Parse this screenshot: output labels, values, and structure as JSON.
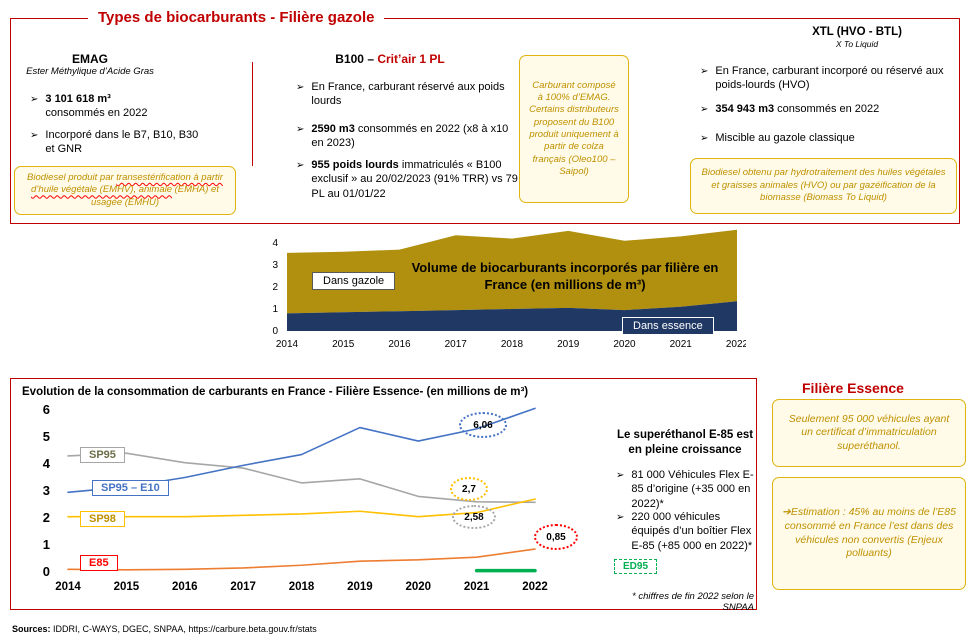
{
  "icons": {
    "bullet": "➢",
    "arrow_right": "➔"
  },
  "colors": {
    "accent_red": "#C00000",
    "note_border": "#DFB40F",
    "note_text": "#BF9000",
    "gazole_area": "#B0900E",
    "essence_area": "#1F3864"
  },
  "gazole": {
    "title": "Types de biocarburants - Filière gazole",
    "emag": {
      "title": "EMAG",
      "subtitle": "Ester Méthylique d’Acide Gras",
      "b1_bold": "3 101 618 m³",
      "b1_rest": "consommés en 2022",
      "b2": "Incorporé dans le B7, B10, B30 et GNR",
      "note_plain1": "Biodiesel produit par ",
      "note_wavy": "transestérification à partir d’huile végétale (EMHV), animale",
      "note_plain2": " (EMHA) et usagée (EMHU)"
    },
    "b100": {
      "title_prefix": "B100 – ",
      "title_red": "Crit’air 1 PL",
      "b1": "En France, carburant réservé aux poids lourds",
      "b2_bold": "2590 m3",
      "b2_rest": " consommés en 2022 (x8 à x10 en 2023)",
      "b3_bold": "955 poids lourds",
      "b3_rest": " immatriculés « B100 exclusif » au 20/02/2023 (91% TRR) vs 79 PL au 01/01/22",
      "note": "Carburant composé à 100% d’EMAG. Certains distributeurs proposent du B100 produit uniquement à partir de colza français (Oleo100 – Saipol)"
    },
    "xtl": {
      "title": "XTL (HVO - BTL)",
      "subtitle": "X To Liquid",
      "b1": "En France, carburant incorporé ou réservé aux poids-lourds (HVO)",
      "b2_bold": "354 943 m3",
      "b2_rest": " consommés en 2022",
      "b3": "Miscible au gazole classique",
      "note": "Biodiesel obtenu par hydrotraitement des huiles végétales et graisses animales (HVO) ou par gazéification de la biomasse (Biomass To Liquid)"
    }
  },
  "essence": {
    "title": "Filière Essence",
    "growth_title": "Le superéthanol E-85 est en pleine croissance",
    "b1": "81 000 Véhicules Flex E-85 d’origine (+35 000 en 2022)*",
    "b2": "220 000 véhicules équipés d’un boîtier Flex E-85 (+85 000 en 2022)*",
    "footnote": "* chiffres de fin 2022 selon le SNPAA",
    "note1": "Seulement 95 000 véhicules ayant un certificat d’immatriculation superéthanol.",
    "note2": "Estimation : 45% au moins de l’E85 consommé en France l’est dans des véhicules non convertis (Enjeux polluants)"
  },
  "footer": {
    "label": "Sources:",
    "text": " IDDRI, C-WAYS, DGEC, SNPAA, https://carbure.beta.gouv.fr/stats"
  },
  "chart_data": [
    {
      "type": "area",
      "title": "Volume de biocarburants incorporés par filière en France (en millions de m³)",
      "stacked": true,
      "x": [
        2014,
        2015,
        2016,
        2017,
        2018,
        2019,
        2020,
        2021,
        2022
      ],
      "series": [
        {
          "name": "Dans essence",
          "color": "#1F3864",
          "values": [
            0.8,
            0.85,
            0.9,
            0.95,
            1.0,
            1.05,
            0.95,
            1.1,
            1.35
          ]
        },
        {
          "name": "Dans gazole",
          "color": "#B0900E",
          "values": [
            2.75,
            2.75,
            2.8,
            3.4,
            3.2,
            3.5,
            3.15,
            3.2,
            3.25
          ]
        }
      ],
      "ylim": [
        0,
        4
      ],
      "yticks": [
        0,
        1,
        2,
        3,
        4
      ],
      "grid": false,
      "legend_position": "on-chart"
    },
    {
      "type": "line",
      "title": "Evolution de la consommation de carburants en France - Filière Essence- (en millions de m³)",
      "x": [
        2014,
        2015,
        2016,
        2017,
        2018,
        2019,
        2020,
        2021,
        2022
      ],
      "series": [
        {
          "name": "SP95",
          "color": "#A6A6A6",
          "label_color": "#6E6E49",
          "values": [
            4.3,
            4.4,
            4.05,
            3.85,
            3.3,
            3.45,
            2.8,
            2.6,
            2.58
          ]
        },
        {
          "name": "SP95 – E10",
          "color": "#4472C4",
          "label_color": "#4472C4",
          "values": [
            2.95,
            3.15,
            3.5,
            3.95,
            4.35,
            5.35,
            4.85,
            5.3,
            6.06
          ]
        },
        {
          "name": "SP98",
          "color": "#FFC000",
          "label_color": "#BF9000",
          "values": [
            2.05,
            2.05,
            2.05,
            2.1,
            2.15,
            2.25,
            2.05,
            2.2,
            2.7
          ]
        },
        {
          "name": "E85",
          "color": "#ED7D31",
          "label_color": "#FF0000",
          "values": [
            0.1,
            0.08,
            0.1,
            0.15,
            0.25,
            0.4,
            0.45,
            0.55,
            0.85
          ]
        },
        {
          "name": "ED95",
          "color": "#00B050",
          "label_color": "#00B050",
          "thick": true,
          "values": [
            null,
            null,
            null,
            null,
            null,
            null,
            null,
            0.05,
            0.05
          ]
        }
      ],
      "value_labels": {
        "sp95_e10": "6,06",
        "sp98": "2,7",
        "sp95": "2,58",
        "e85": "0,85"
      },
      "ylim": [
        0,
        6
      ],
      "yticks": [
        0,
        1,
        2,
        3,
        4,
        5,
        6
      ],
      "grid": false,
      "legend_position": "on-chart"
    }
  ]
}
